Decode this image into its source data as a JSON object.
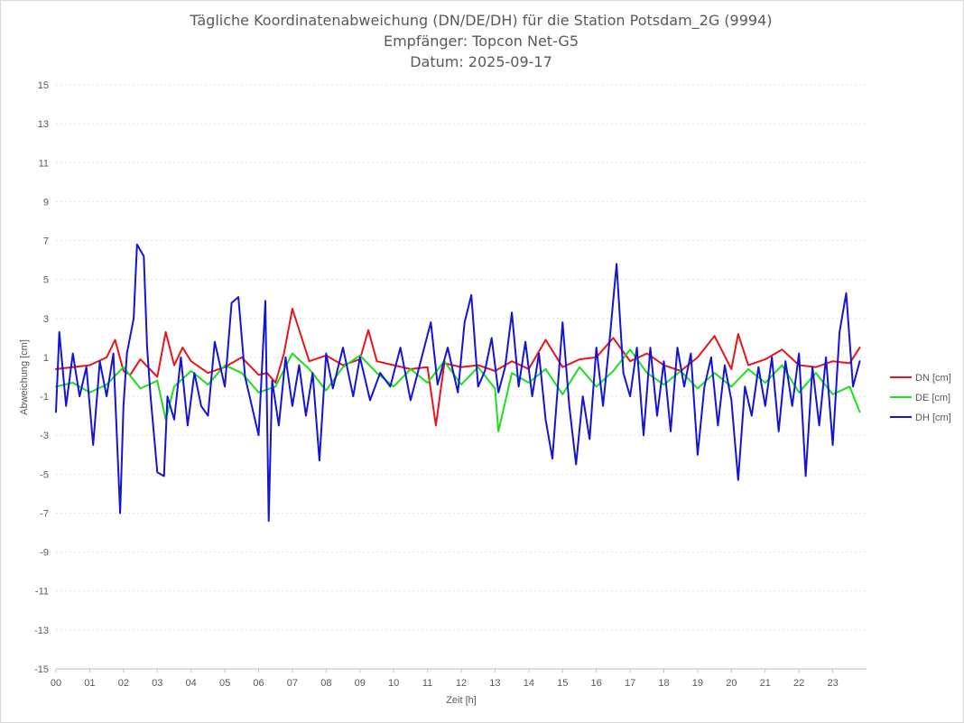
{
  "chart_data": {
    "type": "line",
    "title_lines": [
      "Tägliche Koordinatenabweichung (DN/DE/DH) für die Station Potsdam_2G (9994)",
      "Empfänger: Topcon Net-G5",
      "Datum: 2025-09-17"
    ],
    "xlabel": "Zeit [h]",
    "ylabel": "Abweichung [cm]",
    "xlim": [
      0,
      24
    ],
    "ylim": [
      -15,
      15
    ],
    "x_ticks": [
      "00",
      "01",
      "02",
      "03",
      "04",
      "05",
      "06",
      "07",
      "08",
      "09",
      "10",
      "11",
      "12",
      "13",
      "14",
      "15",
      "16",
      "17",
      "18",
      "19",
      "20",
      "21",
      "22",
      "23"
    ],
    "y_ticks": [
      15,
      13,
      11,
      9,
      7,
      5,
      3,
      1,
      -1,
      -3,
      -5,
      -7,
      -9,
      -11,
      -13,
      -15
    ],
    "legend_position": "right",
    "series": [
      {
        "name": "DN [cm]",
        "color": "#e8141c",
        "x": [
          0,
          0.5,
          1,
          1.5,
          1.75,
          2,
          2.2,
          2.5,
          3,
          3.25,
          3.5,
          3.75,
          4,
          4.5,
          5,
          5.5,
          6,
          6.25,
          6.5,
          6.75,
          7,
          7.5,
          8,
          8.5,
          9,
          9.25,
          9.5,
          10,
          10.5,
          11,
          11.25,
          11.5,
          12,
          12.5,
          13,
          13.5,
          14,
          14.5,
          15,
          15.5,
          16,
          16.5,
          17,
          17.5,
          18,
          18.5,
          19,
          19.5,
          20,
          20.2,
          20.5,
          21,
          21.5,
          22,
          22.5,
          23,
          23.5,
          23.8
        ],
        "values": [
          0.4,
          0.5,
          0.6,
          1.0,
          1.9,
          0.3,
          0.1,
          0.9,
          0.0,
          2.3,
          0.6,
          1.5,
          0.8,
          0.2,
          0.5,
          1.0,
          0.1,
          0.2,
          -0.3,
          1.2,
          3.5,
          0.8,
          1.1,
          0.6,
          0.9,
          2.4,
          0.8,
          0.6,
          0.4,
          0.5,
          -2.5,
          0.7,
          0.5,
          0.6,
          0.3,
          0.8,
          0.4,
          1.9,
          0.5,
          0.9,
          1.0,
          2.0,
          0.8,
          1.2,
          0.6,
          0.3,
          1.0,
          2.1,
          0.4,
          2.2,
          0.6,
          0.9,
          1.4,
          0.6,
          0.5,
          0.8,
          0.7,
          1.5
        ]
      },
      {
        "name": "DE [cm]",
        "color": "#1be01b",
        "x": [
          0,
          0.5,
          1,
          1.5,
          2,
          2.5,
          3,
          3.25,
          3.5,
          4,
          4.5,
          5,
          5.5,
          6,
          6.5,
          7,
          7.5,
          8,
          8.5,
          9,
          9.5,
          10,
          10.5,
          11,
          11.5,
          12,
          12.5,
          13,
          13.1,
          13.5,
          14,
          14.5,
          15,
          15.5,
          16,
          16.5,
          17,
          17.5,
          18,
          18.5,
          19,
          19.5,
          20,
          20.5,
          21,
          21.5,
          22,
          22.5,
          23,
          23.5,
          23.8
        ],
        "values": [
          -0.5,
          -0.3,
          -0.8,
          -0.4,
          0.5,
          -0.6,
          -0.2,
          -2.2,
          -0.5,
          0.3,
          -0.4,
          0.6,
          0.2,
          -0.8,
          -0.5,
          1.2,
          0.4,
          -0.7,
          0.5,
          1.1,
          0.2,
          -0.5,
          0.4,
          -0.3,
          0.8,
          -0.4,
          0.5,
          -0.6,
          -2.8,
          0.2,
          -0.3,
          0.4,
          -0.9,
          0.5,
          -0.5,
          0.3,
          1.4,
          0.2,
          -0.4,
          0.3,
          -0.6,
          0.2,
          -0.5,
          0.4,
          -0.3,
          0.6,
          -0.8,
          0.2,
          -0.9,
          -0.5,
          -1.8
        ]
      },
      {
        "name": "DH [cm]",
        "color": "#1414d8",
        "x": [
          0,
          0.1,
          0.3,
          0.5,
          0.7,
          0.9,
          1.1,
          1.3,
          1.5,
          1.7,
          1.9,
          2.0,
          2.1,
          2.3,
          2.4,
          2.5,
          2.6,
          2.7,
          2.8,
          3.0,
          3.2,
          3.3,
          3.5,
          3.7,
          3.9,
          4.1,
          4.3,
          4.5,
          4.7,
          5.0,
          5.2,
          5.4,
          5.6,
          5.8,
          6.0,
          6.2,
          6.3,
          6.4,
          6.6,
          6.8,
          7.0,
          7.2,
          7.4,
          7.6,
          7.8,
          8.0,
          8.2,
          8.5,
          8.8,
          9.0,
          9.3,
          9.6,
          9.9,
          10.2,
          10.5,
          10.8,
          11.1,
          11.3,
          11.6,
          11.9,
          12.1,
          12.3,
          12.5,
          12.7,
          12.9,
          13.1,
          13.3,
          13.5,
          13.7,
          13.9,
          14.1,
          14.3,
          14.5,
          14.7,
          15.0,
          15.2,
          15.4,
          15.6,
          15.8,
          16.0,
          16.2,
          16.4,
          16.6,
          16.8,
          17.0,
          17.2,
          17.4,
          17.6,
          17.8,
          18.0,
          18.2,
          18.4,
          18.6,
          18.8,
          19.0,
          19.2,
          19.4,
          19.6,
          19.8,
          20.0,
          20.2,
          20.4,
          20.6,
          20.8,
          21.0,
          21.2,
          21.4,
          21.6,
          21.8,
          22.0,
          22.2,
          22.4,
          22.6,
          22.8,
          23.0,
          23.2,
          23.4,
          23.6,
          23.8
        ],
        "values": [
          -1.8,
          2.3,
          -1.5,
          1.2,
          -1.0,
          0.5,
          -3.5,
          0.8,
          -1.0,
          1.2,
          -7.0,
          -1.5,
          1.2,
          3.0,
          6.8,
          6.5,
          6.2,
          1.5,
          -1.0,
          -4.9,
          -5.1,
          -1.0,
          -2.2,
          1.0,
          -2.5,
          0.2,
          -1.5,
          -2.0,
          1.8,
          -0.5,
          3.8,
          4.1,
          0.0,
          -1.5,
          -3.0,
          3.9,
          -7.4,
          -0.2,
          -2.5,
          1.0,
          -1.5,
          0.6,
          -2.0,
          0.2,
          -4.3,
          1.2,
          -0.6,
          1.5,
          -1.0,
          1.0,
          -1.2,
          0.2,
          -0.5,
          1.5,
          -1.2,
          0.8,
          2.8,
          -0.4,
          1.5,
          -0.8,
          2.8,
          4.2,
          -0.5,
          0.3,
          2.0,
          -0.8,
          0.5,
          3.3,
          -0.5,
          1.8,
          -1.0,
          1.2,
          -2.2,
          -4.2,
          2.8,
          -1.5,
          -4.5,
          -1.0,
          -3.2,
          1.5,
          -1.5,
          2.0,
          5.8,
          0.2,
          -1.0,
          1.5,
          -3.0,
          1.5,
          -2.0,
          0.8,
          -2.8,
          1.5,
          -0.5,
          1.2,
          -4.0,
          -0.5,
          1.0,
          -2.5,
          0.6,
          -1.2,
          -5.3,
          -0.5,
          -2.0,
          0.5,
          -1.5,
          1.0,
          -2.8,
          0.8,
          -1.5,
          1.2,
          -5.1,
          0.5,
          -2.5,
          1.0,
          -3.5,
          2.3,
          4.3,
          -0.5,
          0.8
        ]
      }
    ]
  }
}
